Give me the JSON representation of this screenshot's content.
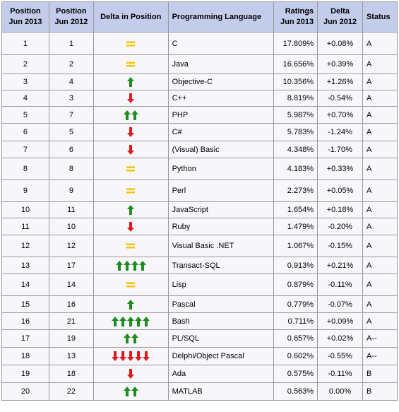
{
  "headers": {
    "pos2013": [
      "Position",
      "Jun 2013"
    ],
    "pos2012": [
      "Position",
      "Jun 2012"
    ],
    "change": "Delta in Position",
    "language": "Programming Language",
    "rating": [
      "Ratings",
      "Jun 2013"
    ],
    "delta": [
      "Delta",
      "Jun 2012"
    ],
    "status": "Status"
  },
  "colors": {
    "up": "#1e8c1e",
    "down": "#e01a1a",
    "same": "#f5c400"
  },
  "rows": [
    {
      "pos2013": "1",
      "pos2012": "1",
      "change": {
        "kind": "same",
        "count": 1,
        "icon": "equals-icon"
      },
      "language": "C",
      "rating": "17.809%",
      "delta": "+0.08%",
      "status": "A"
    },
    {
      "pos2013": "2",
      "pos2012": "2",
      "change": {
        "kind": "same",
        "count": 1,
        "icon": "equals-icon"
      },
      "language": "Java",
      "rating": "16.656%",
      "delta": "+0.39%",
      "status": "A"
    },
    {
      "pos2013": "3",
      "pos2012": "4",
      "change": {
        "kind": "up",
        "count": 1,
        "icon": "arrow-up-icon"
      },
      "language": "Objective-C",
      "rating": "10.356%",
      "delta": "+1.26%",
      "status": "A"
    },
    {
      "pos2013": "4",
      "pos2012": "3",
      "change": {
        "kind": "down",
        "count": 1,
        "icon": "arrow-down-icon"
      },
      "language": "C++",
      "rating": "8.819%",
      "delta": "-0.54%",
      "status": "A"
    },
    {
      "pos2013": "5",
      "pos2012": "7",
      "change": {
        "kind": "up",
        "count": 2,
        "icon": "arrow-up-icon"
      },
      "language": "PHP",
      "rating": "5.987%",
      "delta": "+0.70%",
      "status": "A"
    },
    {
      "pos2013": "6",
      "pos2012": "5",
      "change": {
        "kind": "down",
        "count": 1,
        "icon": "arrow-down-icon"
      },
      "language": "C#",
      "rating": "5.783%",
      "delta": "-1.24%",
      "status": "A"
    },
    {
      "pos2013": "7",
      "pos2012": "6",
      "change": {
        "kind": "down",
        "count": 1,
        "icon": "arrow-down-icon"
      },
      "language": "(Visual) Basic",
      "rating": "4.348%",
      "delta": "-1.70%",
      "status": "A"
    },
    {
      "pos2013": "8",
      "pos2012": "8",
      "change": {
        "kind": "same",
        "count": 1,
        "icon": "equals-icon"
      },
      "language": "Python",
      "rating": "4.183%",
      "delta": "+0.33%",
      "status": "A"
    },
    {
      "pos2013": "9",
      "pos2012": "9",
      "change": {
        "kind": "same",
        "count": 1,
        "icon": "equals-icon"
      },
      "language": "Perl",
      "rating": "2.273%",
      "delta": "+0.05%",
      "status": "A"
    },
    {
      "pos2013": "10",
      "pos2012": "11",
      "change": {
        "kind": "up",
        "count": 1,
        "icon": "arrow-up-icon"
      },
      "language": "JavaScript",
      "rating": "1.654%",
      "delta": "+0.18%",
      "status": "A"
    },
    {
      "pos2013": "11",
      "pos2012": "10",
      "change": {
        "kind": "down",
        "count": 1,
        "icon": "arrow-down-icon"
      },
      "language": "Ruby",
      "rating": "1.479%",
      "delta": "-0.20%",
      "status": "A"
    },
    {
      "pos2013": "12",
      "pos2012": "12",
      "change": {
        "kind": "same",
        "count": 1,
        "icon": "equals-icon"
      },
      "language": "Visual Basic .NET",
      "rating": "1.067%",
      "delta": "-0.15%",
      "status": "A"
    },
    {
      "pos2013": "13",
      "pos2012": "17",
      "change": {
        "kind": "up",
        "count": 4,
        "icon": "arrow-up-icon"
      },
      "language": "Transact-SQL",
      "rating": "0.913%",
      "delta": "+0.21%",
      "status": "A"
    },
    {
      "pos2013": "14",
      "pos2012": "14",
      "change": {
        "kind": "same",
        "count": 1,
        "icon": "equals-icon"
      },
      "language": "Lisp",
      "rating": "0.879%",
      "delta": "-0.11%",
      "status": "A"
    },
    {
      "pos2013": "15",
      "pos2012": "16",
      "change": {
        "kind": "up",
        "count": 1,
        "icon": "arrow-up-icon"
      },
      "language": "Pascal",
      "rating": "0.779%",
      "delta": "-0.07%",
      "status": "A"
    },
    {
      "pos2013": "16",
      "pos2012": "21",
      "change": {
        "kind": "up",
        "count": 5,
        "icon": "arrow-up-icon"
      },
      "language": "Bash",
      "rating": "0.711%",
      "delta": "+0.09%",
      "status": "A"
    },
    {
      "pos2013": "17",
      "pos2012": "19",
      "change": {
        "kind": "up",
        "count": 2,
        "icon": "arrow-up-icon"
      },
      "language": "PL/SQL",
      "rating": "0.657%",
      "delta": "+0.02%",
      "status": "A--"
    },
    {
      "pos2013": "18",
      "pos2012": "13",
      "change": {
        "kind": "down",
        "count": 5,
        "icon": "arrow-down-icon"
      },
      "language": "Delphi/Object Pascal",
      "rating": "0.602%",
      "delta": "-0.55%",
      "status": "A--"
    },
    {
      "pos2013": "19",
      "pos2012": "18",
      "change": {
        "kind": "down",
        "count": 1,
        "icon": "arrow-down-icon"
      },
      "language": "Ada",
      "rating": "0.575%",
      "delta": "-0.11%",
      "status": "B"
    },
    {
      "pos2013": "20",
      "pos2012": "22",
      "change": {
        "kind": "up",
        "count": 2,
        "icon": "arrow-up-icon"
      },
      "language": "MATLAB",
      "rating": "0.563%",
      "delta": "0.00%",
      "status": "B"
    }
  ]
}
